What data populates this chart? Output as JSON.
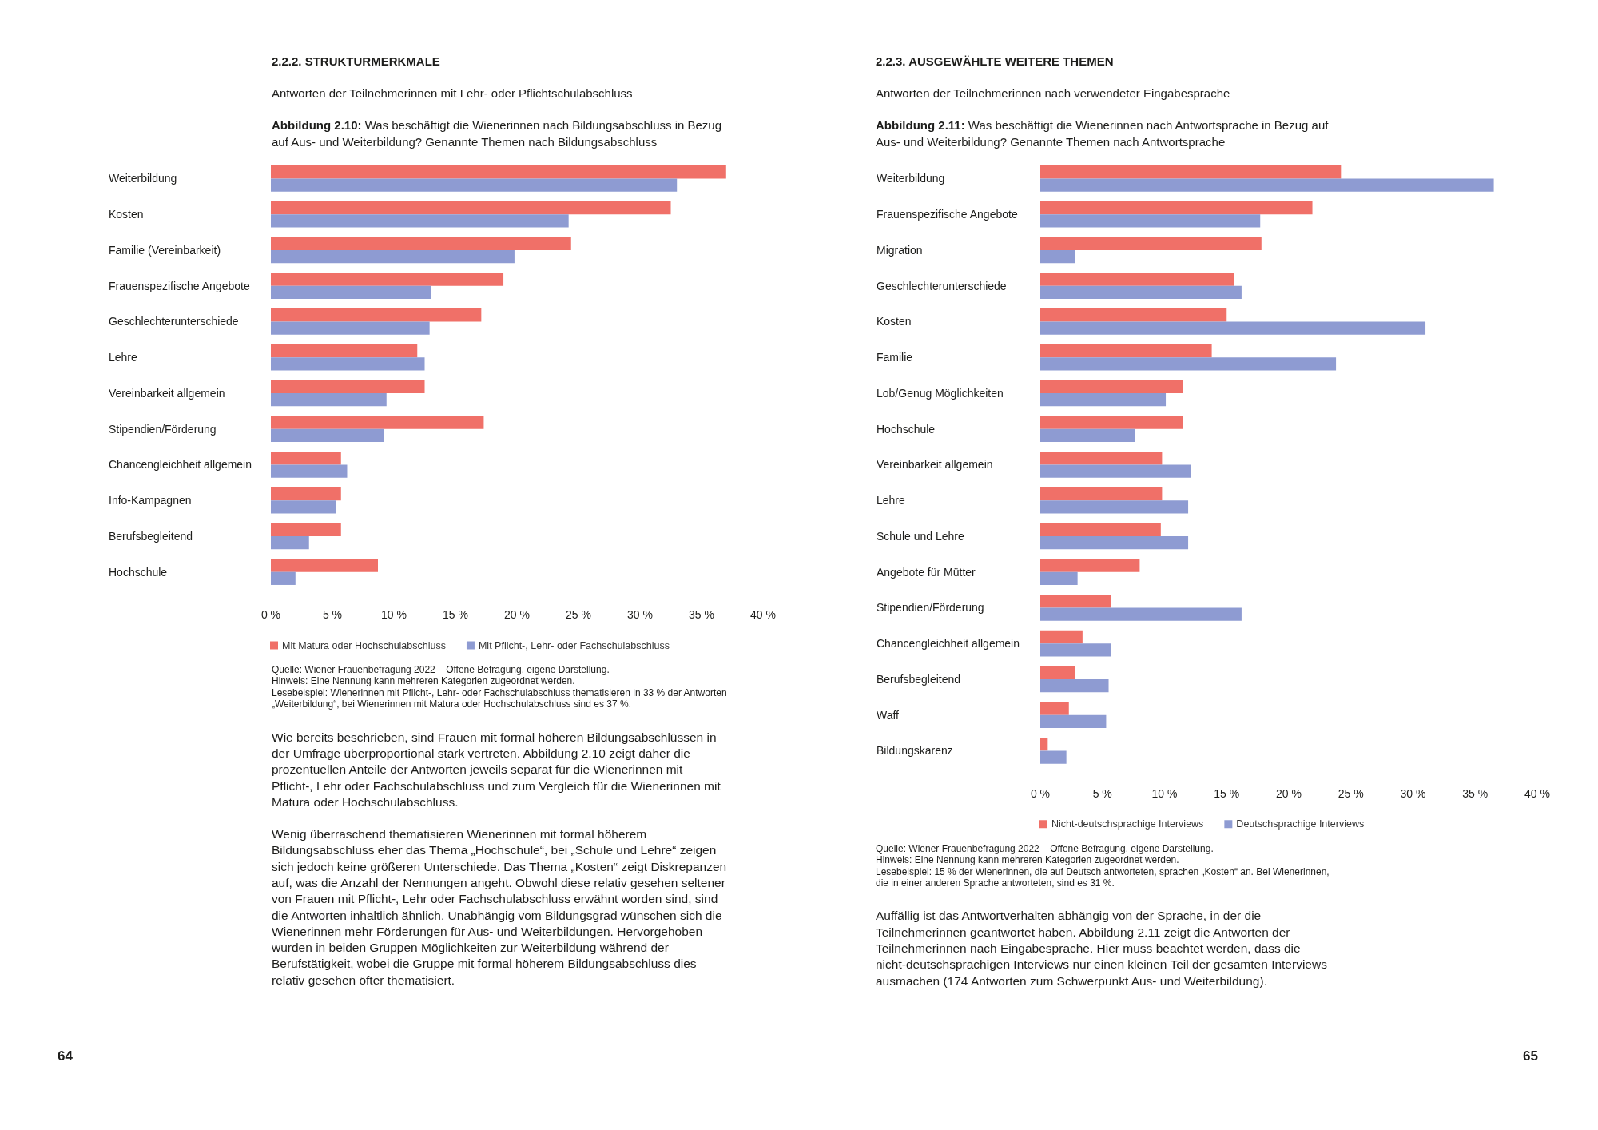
{
  "chart_data": [
    {
      "type": "bar",
      "orientation": "horizontal",
      "title": "Abbildung 2.10: Was beschäftigt die Wienerinnen nach Bildungsabschluss in Bezug auf Aus- und Weiterbildung? Genannte Themen nach Bildungsabschluss",
      "subtitle": "Antworten der Teilnehmerinnen mit Lehr- oder Pflichtschulabschluss",
      "categories": [
        "Weiterbildung",
        "Kosten",
        "Familie (Vereinbarkeit)",
        "Frauenspezifische Angebote",
        "Geschlechterunterschiede",
        "Lehre",
        "Vereinbarkeit allgemein",
        "Stipendien/Förderung",
        "Chancengleichheit allgemein",
        "Info-Kampagnen",
        "Berufsbegleitend",
        "Hochschule"
      ],
      "series": [
        {
          "name": "Mit Matura oder Hochschulabschluss",
          "color": "#f07068",
          "values": [
            37,
            32.5,
            24.4,
            18.9,
            17.1,
            11.9,
            12.5,
            17.3,
            5.7,
            5.7,
            5.7,
            8.7
          ]
        },
        {
          "name": "Mit Pflicht-, Lehr- oder Fachschulabschluss",
          "color": "#8e9bd2",
          "values": [
            33,
            24.2,
            19.8,
            13,
            12.9,
            12.5,
            9.4,
            9.2,
            6.2,
            5.3,
            3.1,
            2
          ]
        }
      ],
      "xlim": [
        0,
        40
      ],
      "xticks": [
        {
          "value": 0,
          "label": "0 %"
        },
        {
          "value": 5,
          "label": "5 %"
        },
        {
          "value": 10,
          "label": "10 %"
        },
        {
          "value": 15,
          "label": "15 %"
        },
        {
          "value": 20,
          "label": "20 %"
        },
        {
          "value": 25,
          "label": "25 %"
        },
        {
          "value": 30,
          "label": "30 %"
        },
        {
          "value": 35,
          "label": "35 %"
        },
        {
          "value": 40,
          "label": "40 %"
        }
      ],
      "grid": false,
      "legend": "bottom",
      "annotations": [
        "2.2.2. STRUKTURMERKMALE",
        "Quelle: Wiener Frauenbefragung 2022 – Offene Befragung, eigene Darstellung.\nHinweis: Eine Nennung kann mehreren Kategorien zugeordnet werden.\nLesebeispiel: Wienerinnen mit Pflicht-, Lehr- oder Fachschulabschluss thematisieren in 33 % der Antworten „Weiterbildung“, bei Wienerinnen mit Matura oder Hochschulabschluss sind es 37 %.",
        "Wie bereits beschrieben, sind Frauen mit formal höheren Bildungsabschlüssen in der Umfrage überproportional stark vertreten. Abbildung 2.10 zeigt daher die prozentuellen Anteile der Antworten jeweils separat für die Wienerinnen mit Pflicht-, Lehr oder Fachschulabschluss und zum Vergleich für die Wienerinnen mit Matura oder Hochschulabschluss.",
        "Wenig überraschend thematisieren Wienerinnen mit formal höherem Bildungsabschluss eher das Thema „Hochschule“, bei „Schule und Lehre“ zeigen sich jedoch keine größeren Unterschiede. Das Thema „Kosten“ zeigt Diskrepanzen auf, was die Anzahl der Nennungen angeht. Obwohl diese relativ gesehen seltener von Frauen mit Pflicht-, Lehr oder Fachschulabschluss erwähnt worden sind, sind die Antworten inhaltlich ähnlich. Unabhängig vom Bildungsgrad wünschen sich die Wienerinnen mehr Förderungen für Aus- und Weiterbildungen. Hervorgehoben wurden in beiden Gruppen Möglichkeiten zur Weiterbildung während der Berufstätigkeit, wobei die Gruppe mit formal höherem Bildungsabschluss dies relativ gesehen öfter thematisiert.",
        "64"
      ]
    },
    {
      "type": "bar",
      "orientation": "horizontal",
      "title": "Abbildung 2.11: Was beschäftigt die Wienerinnen nach Antwortsprache in Bezug auf Aus- und Weiterbildung? Genannte Themen nach Antwortsprache",
      "subtitle": "Antworten der Teilnehmerinnen nach verwendeter Eingabesprache",
      "categories": [
        "Weiterbildung",
        "Frauenspezifische Angebote",
        "Migration",
        "Geschlechterunterschiede",
        "Kosten",
        "Familie",
        "Lob/Genug Möglichkeiten",
        "Hochschule",
        "Vereinbarkeit allgemein",
        "Lehre",
        "Schule und Lehre",
        "Angebote für Mütter",
        "Stipendien/Förderung",
        "Chancengleichheit allgemein",
        "Berufsbegleitend",
        "Waff",
        "Bildungskarenz"
      ],
      "series": [
        {
          "name": "Nicht-deutschsprachige Interviews",
          "color": "#f07068",
          "values": [
            24.2,
            21.9,
            17.8,
            15.6,
            15,
            13.8,
            11.5,
            11.5,
            9.8,
            9.8,
            9.7,
            8,
            5.7,
            3.4,
            2.8,
            2.3,
            0.6
          ]
        },
        {
          "name": "Deutschsprachige Interviews",
          "color": "#8e9bd2",
          "values": [
            36.5,
            17.7,
            2.8,
            16.2,
            31,
            23.8,
            10.1,
            7.6,
            12.1,
            11.9,
            11.9,
            3,
            16.2,
            5.7,
            5.5,
            5.3,
            2.1
          ]
        }
      ],
      "xlim": [
        0,
        40
      ],
      "xticks": [
        {
          "value": 0,
          "label": "0 %"
        },
        {
          "value": 5,
          "label": "5 %"
        },
        {
          "value": 10,
          "label": "10 %"
        },
        {
          "value": 15,
          "label": "15 %"
        },
        {
          "value": 20,
          "label": "20 %"
        },
        {
          "value": 25,
          "label": "25 %"
        },
        {
          "value": 30,
          "label": "30 %"
        },
        {
          "value": 35,
          "label": "35 %"
        },
        {
          "value": 40,
          "label": "40 %"
        }
      ],
      "grid": false,
      "legend": "bottom",
      "annotations": [
        "2.2.3. AUSGEWÄHLTE WEITERE THEMEN",
        "Quelle: Wiener Frauenbefragung 2022 – Offene Befragung, eigene Darstellung.\nHinweis: Eine Nennung kann mehreren Kategorien zugeordnet werden.\nLesebeispiel: 15 % der Wienerinnen, die auf Deutsch antworteten, sprachen „Kosten“ an. Bei Wienerinnen, die in einer anderen Sprache antworteten, sind es 31 %.",
        "Auffällig ist das Antwortverhalten abhängig von der Sprache, in der die Teilnehmerinnen geantwortet haben. Abbildung 2.11 zeigt die Antworten der Teilnehmerinnen nach Eingabesprache. Hier muss beachtet werden, dass die nicht-deutschsprachigen Interviews nur einen kleinen Teil der gesamten Interviews ausmachen (174 Antworten zum Schwerpunkt Aus- und Weiterbildung).",
        "65"
      ]
    }
  ]
}
